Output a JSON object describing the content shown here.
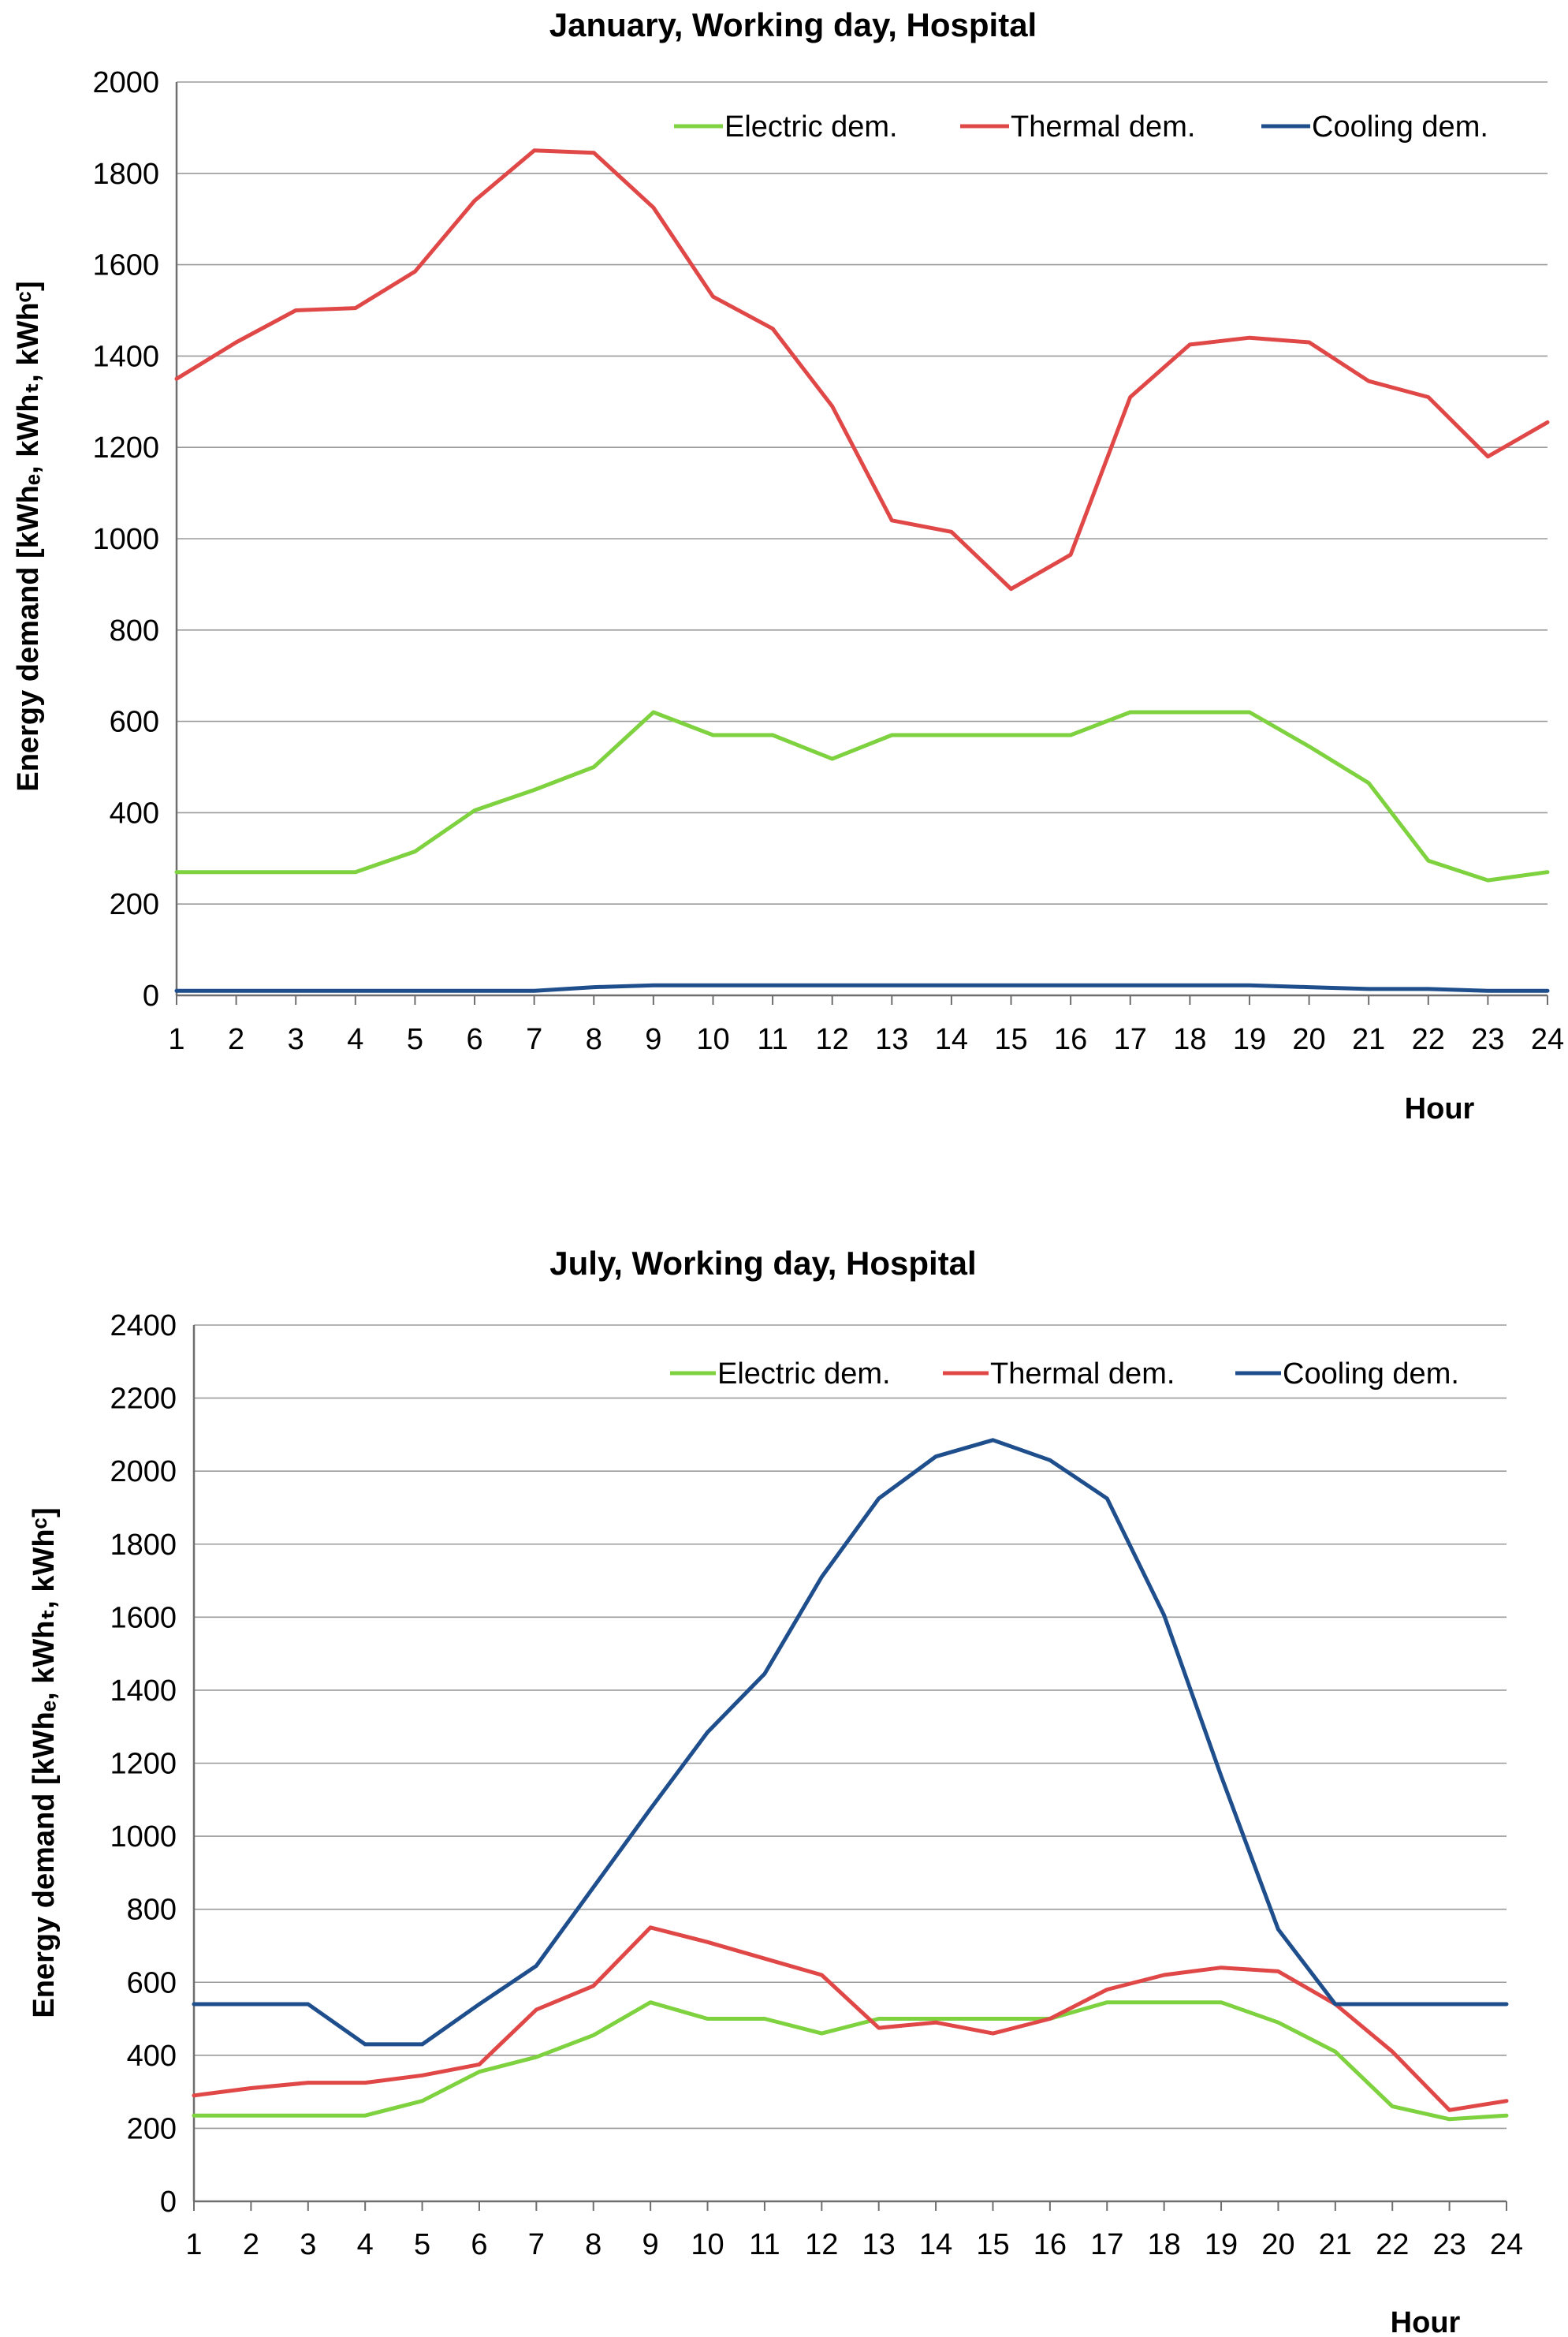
{
  "chart_data": [
    {
      "type": "line",
      "title": "January, Working day, Hospital",
      "xlabel": "Hour",
      "ylabel": "Energy demand [kWhₑ, kWhₜ, kWhᶜ]",
      "x": [
        1,
        2,
        3,
        4,
        5,
        6,
        7,
        8,
        9,
        10,
        11,
        12,
        13,
        14,
        15,
        16,
        17,
        18,
        19,
        20,
        21,
        22,
        23,
        24
      ],
      "xticks": [
        "1",
        "2",
        "3",
        "4",
        "5",
        "6",
        "7",
        "8",
        "9",
        "10",
        "11",
        "12",
        "13",
        "14",
        "15",
        "16",
        "17",
        "18",
        "19",
        "20",
        "21",
        "22",
        "23",
        "24"
      ],
      "ylim": [
        0,
        2000
      ],
      "yticks": [
        0,
        200,
        400,
        600,
        800,
        1000,
        1200,
        1400,
        1600,
        1800,
        2000
      ],
      "grid": "horizontal",
      "legend_position": "top-right",
      "series": [
        {
          "name": "Electric dem.",
          "color": "#7fd23f",
          "values": [
            270,
            270,
            270,
            270,
            315,
            405,
            450,
            500,
            620,
            570,
            570,
            518,
            570,
            570,
            570,
            570,
            620,
            620,
            620,
            545,
            465,
            295,
            252,
            270
          ]
        },
        {
          "name": "Thermal dem.",
          "color": "#e04848",
          "values": [
            1350,
            1430,
            1500,
            1505,
            1585,
            1740,
            1850,
            1845,
            1725,
            1530,
            1460,
            1290,
            1040,
            1015,
            890,
            965,
            1310,
            1425,
            1440,
            1430,
            1345,
            1310,
            1180,
            1255
          ]
        },
        {
          "name": "Cooling dem.",
          "color": "#1f4e8c",
          "values": [
            10,
            10,
            10,
            10,
            10,
            10,
            10,
            18,
            22,
            22,
            22,
            22,
            22,
            22,
            22,
            22,
            22,
            22,
            22,
            18,
            14,
            14,
            10,
            10
          ]
        }
      ]
    },
    {
      "type": "line",
      "title": "July, Working day, Hospital",
      "xlabel": "Hour",
      "ylabel": "Energy demand [kWhₑ, kWhₜ, kWhᶜ]",
      "x": [
        1,
        2,
        3,
        4,
        5,
        6,
        7,
        8,
        9,
        10,
        11,
        12,
        13,
        14,
        15,
        16,
        17,
        18,
        19,
        20,
        21,
        22,
        23,
        24
      ],
      "xticks": [
        "1",
        "2",
        "3",
        "4",
        "5",
        "6",
        "7",
        "8",
        "9",
        "10",
        "11",
        "12",
        "13",
        "14",
        "15",
        "16",
        "17",
        "18",
        "19",
        "20",
        "21",
        "22",
        "23",
        "24"
      ],
      "ylim": [
        0,
        2400
      ],
      "yticks": [
        0,
        200,
        400,
        600,
        800,
        1000,
        1200,
        1400,
        1600,
        1800,
        2000,
        2200,
        2400
      ],
      "grid": "horizontal",
      "legend_position": "top-right",
      "series": [
        {
          "name": "Electric dem.",
          "color": "#7fd23f",
          "values": [
            235,
            235,
            235,
            235,
            275,
            355,
            395,
            455,
            545,
            500,
            500,
            460,
            500,
            500,
            500,
            500,
            545,
            545,
            545,
            490,
            410,
            260,
            225,
            235
          ]
        },
        {
          "name": "Thermal dem.",
          "color": "#e04848",
          "values": [
            290,
            310,
            325,
            325,
            345,
            375,
            525,
            590,
            750,
            710,
            665,
            620,
            475,
            490,
            460,
            500,
            580,
            620,
            640,
            630,
            540,
            410,
            250,
            275
          ]
        },
        {
          "name": "Cooling dem.",
          "color": "#1f4e8c",
          "values": [
            540,
            540,
            540,
            430,
            430,
            540,
            645,
            860,
            1075,
            1285,
            1445,
            1710,
            1925,
            2040,
            2085,
            2030,
            1925,
            1605,
            1165,
            745,
            540,
            540,
            540,
            540
          ]
        }
      ]
    }
  ]
}
